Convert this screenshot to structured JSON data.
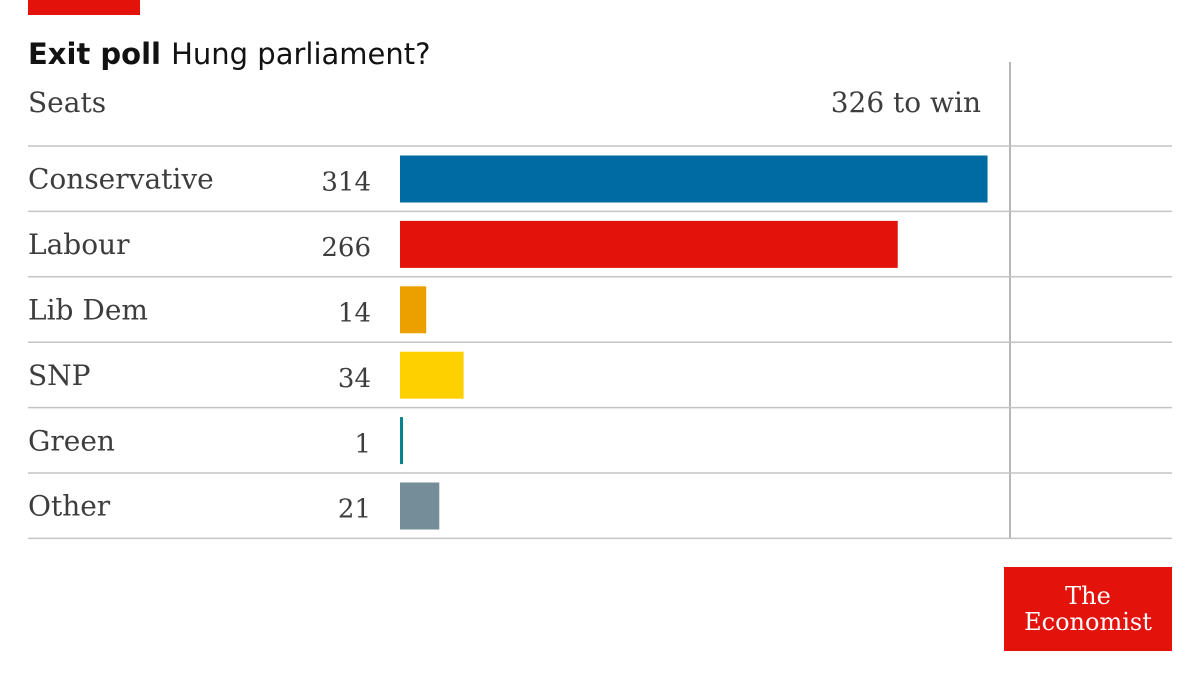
{
  "header": {
    "title_bold": "Exit poll",
    "title_rest": "Hung parliament?"
  },
  "chart_data": {
    "type": "bar",
    "orientation": "horizontal",
    "title": "Exit poll Hung parliament?",
    "ylabel": "Seats",
    "reference_label": "326 to win",
    "reference_value": 326,
    "xlim": [
      0,
      326
    ],
    "grid": true,
    "categories": [
      "Conservative",
      "Labour",
      "Lib Dem",
      "SNP",
      "Green",
      "Other"
    ],
    "values": [
      314,
      266,
      14,
      34,
      1,
      21
    ],
    "value_labels": [
      "314",
      "266",
      "14",
      "34",
      "1",
      "21"
    ],
    "colors": [
      "#006ba2",
      "#e3120b",
      "#eba000",
      "#ffd000",
      "#00848e",
      "#758d99"
    ]
  },
  "brand": {
    "line1": "The",
    "line2": "Economist",
    "color": "#e3120b"
  }
}
